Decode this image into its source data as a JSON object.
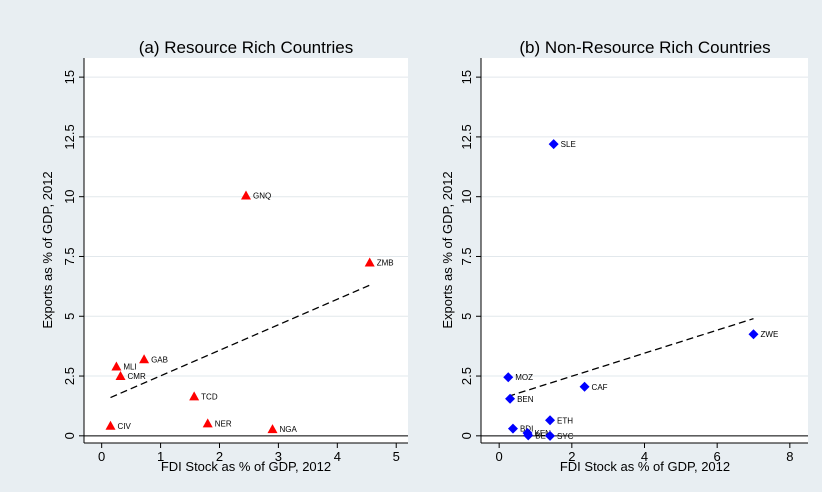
{
  "chart_data": [
    {
      "type": "scatter",
      "title": "(a) Resource Rich Countries",
      "xlabel": "FDI Stock as % of GDP, 2012",
      "ylabel": "Exports as % of GDP, 2012",
      "xlim": [
        -0.3,
        5.2
      ],
      "ylim": [
        -0.3,
        15.8
      ],
      "xticks": [
        0,
        1,
        2,
        3,
        4,
        5
      ],
      "yticks": [
        0,
        2.5,
        5,
        7.5,
        10,
        12.5,
        15
      ],
      "xtick_labels": [
        "0",
        "1",
        "2",
        "3",
        "4",
        "5"
      ],
      "ytick_labels": [
        "0",
        "2.5",
        "5",
        "7.5",
        "10",
        "12.5",
        "15"
      ],
      "grid": true,
      "marker": "triangle",
      "color": "#ff0000",
      "points": [
        {
          "label": "GNQ",
          "x": 2.45,
          "y": 10.05
        },
        {
          "label": "ZMB",
          "x": 4.55,
          "y": 7.25
        },
        {
          "label": "GAB",
          "x": 0.72,
          "y": 3.2
        },
        {
          "label": "MLI",
          "x": 0.25,
          "y": 2.9
        },
        {
          "label": "CMR",
          "x": 0.32,
          "y": 2.5
        },
        {
          "label": "TCD",
          "x": 1.57,
          "y": 1.65
        },
        {
          "label": "NER",
          "x": 1.8,
          "y": 0.52
        },
        {
          "label": "CIV",
          "x": 0.15,
          "y": 0.42
        },
        {
          "label": "NGA",
          "x": 2.9,
          "y": 0.28
        }
      ],
      "fit_line": {
        "x": [
          0.15,
          4.55
        ],
        "y": [
          1.6,
          6.3
        ]
      }
    },
    {
      "type": "scatter",
      "title": "(b) Non-Resource Rich Countries",
      "xlabel": "FDI Stock as % of GDP, 2012",
      "ylabel": "Exports as % of GDP, 2012",
      "xlim": [
        -0.5,
        8.5
      ],
      "ylim": [
        -0.3,
        15.8
      ],
      "xticks": [
        0,
        2,
        4,
        6,
        8
      ],
      "yticks": [
        0,
        2.5,
        5,
        7.5,
        10,
        12.5,
        15
      ],
      "xtick_labels": [
        "0",
        "2",
        "4",
        "6",
        "8"
      ],
      "ytick_labels": [
        "0",
        "2.5",
        "5",
        "7.5",
        "10",
        "12.5",
        "15"
      ],
      "grid": true,
      "marker": "diamond",
      "color": "#0000ff",
      "points": [
        {
          "label": "SLE",
          "x": 1.5,
          "y": 12.2
        },
        {
          "label": "ZWE",
          "x": 7.0,
          "y": 4.25
        },
        {
          "label": "MOZ",
          "x": 0.25,
          "y": 2.45
        },
        {
          "label": "CAF",
          "x": 2.35,
          "y": 2.05
        },
        {
          "label": "BEN",
          "x": 0.3,
          "y": 1.55
        },
        {
          "label": "ETH",
          "x": 1.4,
          "y": 0.65
        },
        {
          "label": "BDI",
          "x": 0.38,
          "y": 0.3
        },
        {
          "label": "KEN",
          "x": 0.78,
          "y": 0.12
        },
        {
          "label": "BEC",
          "x": 0.8,
          "y": 0.02
        },
        {
          "label": "SYC",
          "x": 1.4,
          "y": 0.0
        }
      ],
      "fit_line": {
        "x": [
          0.25,
          7.0
        ],
        "y": [
          1.65,
          4.9
        ]
      }
    }
  ]
}
